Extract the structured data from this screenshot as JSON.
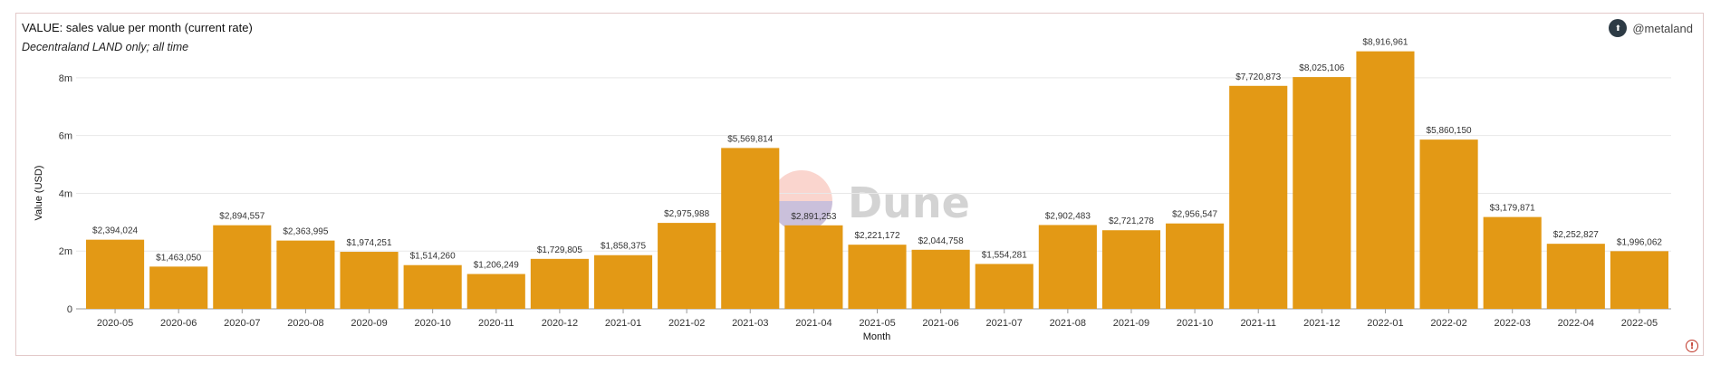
{
  "header": {
    "title": "VALUE: sales value per month (current rate)",
    "subtitle": "Decentraland LAND only; all time",
    "author": "@metaland",
    "watermark": "Dune"
  },
  "colors": {
    "bar": "#E39915",
    "grid": "#e8e8e8"
  },
  "chart_data": {
    "type": "bar",
    "xlabel": "Month",
    "ylabel": "Value (USD)",
    "ylim": [
      0,
      9000000
    ],
    "yticks": [
      {
        "value": 0,
        "label": "0"
      },
      {
        "value": 2000000,
        "label": "2m"
      },
      {
        "value": 4000000,
        "label": "4m"
      },
      {
        "value": 6000000,
        "label": "6m"
      },
      {
        "value": 8000000,
        "label": "8m"
      }
    ],
    "grid": true,
    "categories": [
      "2020-05",
      "2020-06",
      "2020-07",
      "2020-08",
      "2020-09",
      "2020-10",
      "2020-11",
      "2020-12",
      "2021-01",
      "2021-02",
      "2021-03",
      "2021-04",
      "2021-05",
      "2021-06",
      "2021-07",
      "2021-08",
      "2021-09",
      "2021-10",
      "2021-11",
      "2021-12",
      "2022-01",
      "2022-02",
      "2022-03",
      "2022-04",
      "2022-05"
    ],
    "values": [
      2394024,
      1463050,
      2894557,
      2363995,
      1974251,
      1514260,
      1206249,
      1729805,
      1858375,
      2975988,
      5569814,
      2891253,
      2221172,
      2044758,
      1554281,
      2902483,
      2721278,
      2956547,
      7720873,
      8025106,
      8916961,
      5860150,
      3179871,
      2252827,
      1996062
    ],
    "data_labels": [
      "$2,394,024",
      "$1,463,050",
      "$2,894,557",
      "$2,363,995",
      "$1,974,251",
      "$1,514,260",
      "$1,206,249",
      "$1,729,805",
      "$1,858,375",
      "$2,975,988",
      "$5,569,814",
      "$2,891,253",
      "$2,221,172",
      "$2,044,758",
      "$1,554,281",
      "$2,902,483",
      "$2,721,278",
      "$2,956,547",
      "$7,720,873",
      "$8,025,106",
      "$8,916,961",
      "$5,860,150",
      "$3,179,871",
      "$2,252,827",
      "$1,996,062"
    ]
  }
}
